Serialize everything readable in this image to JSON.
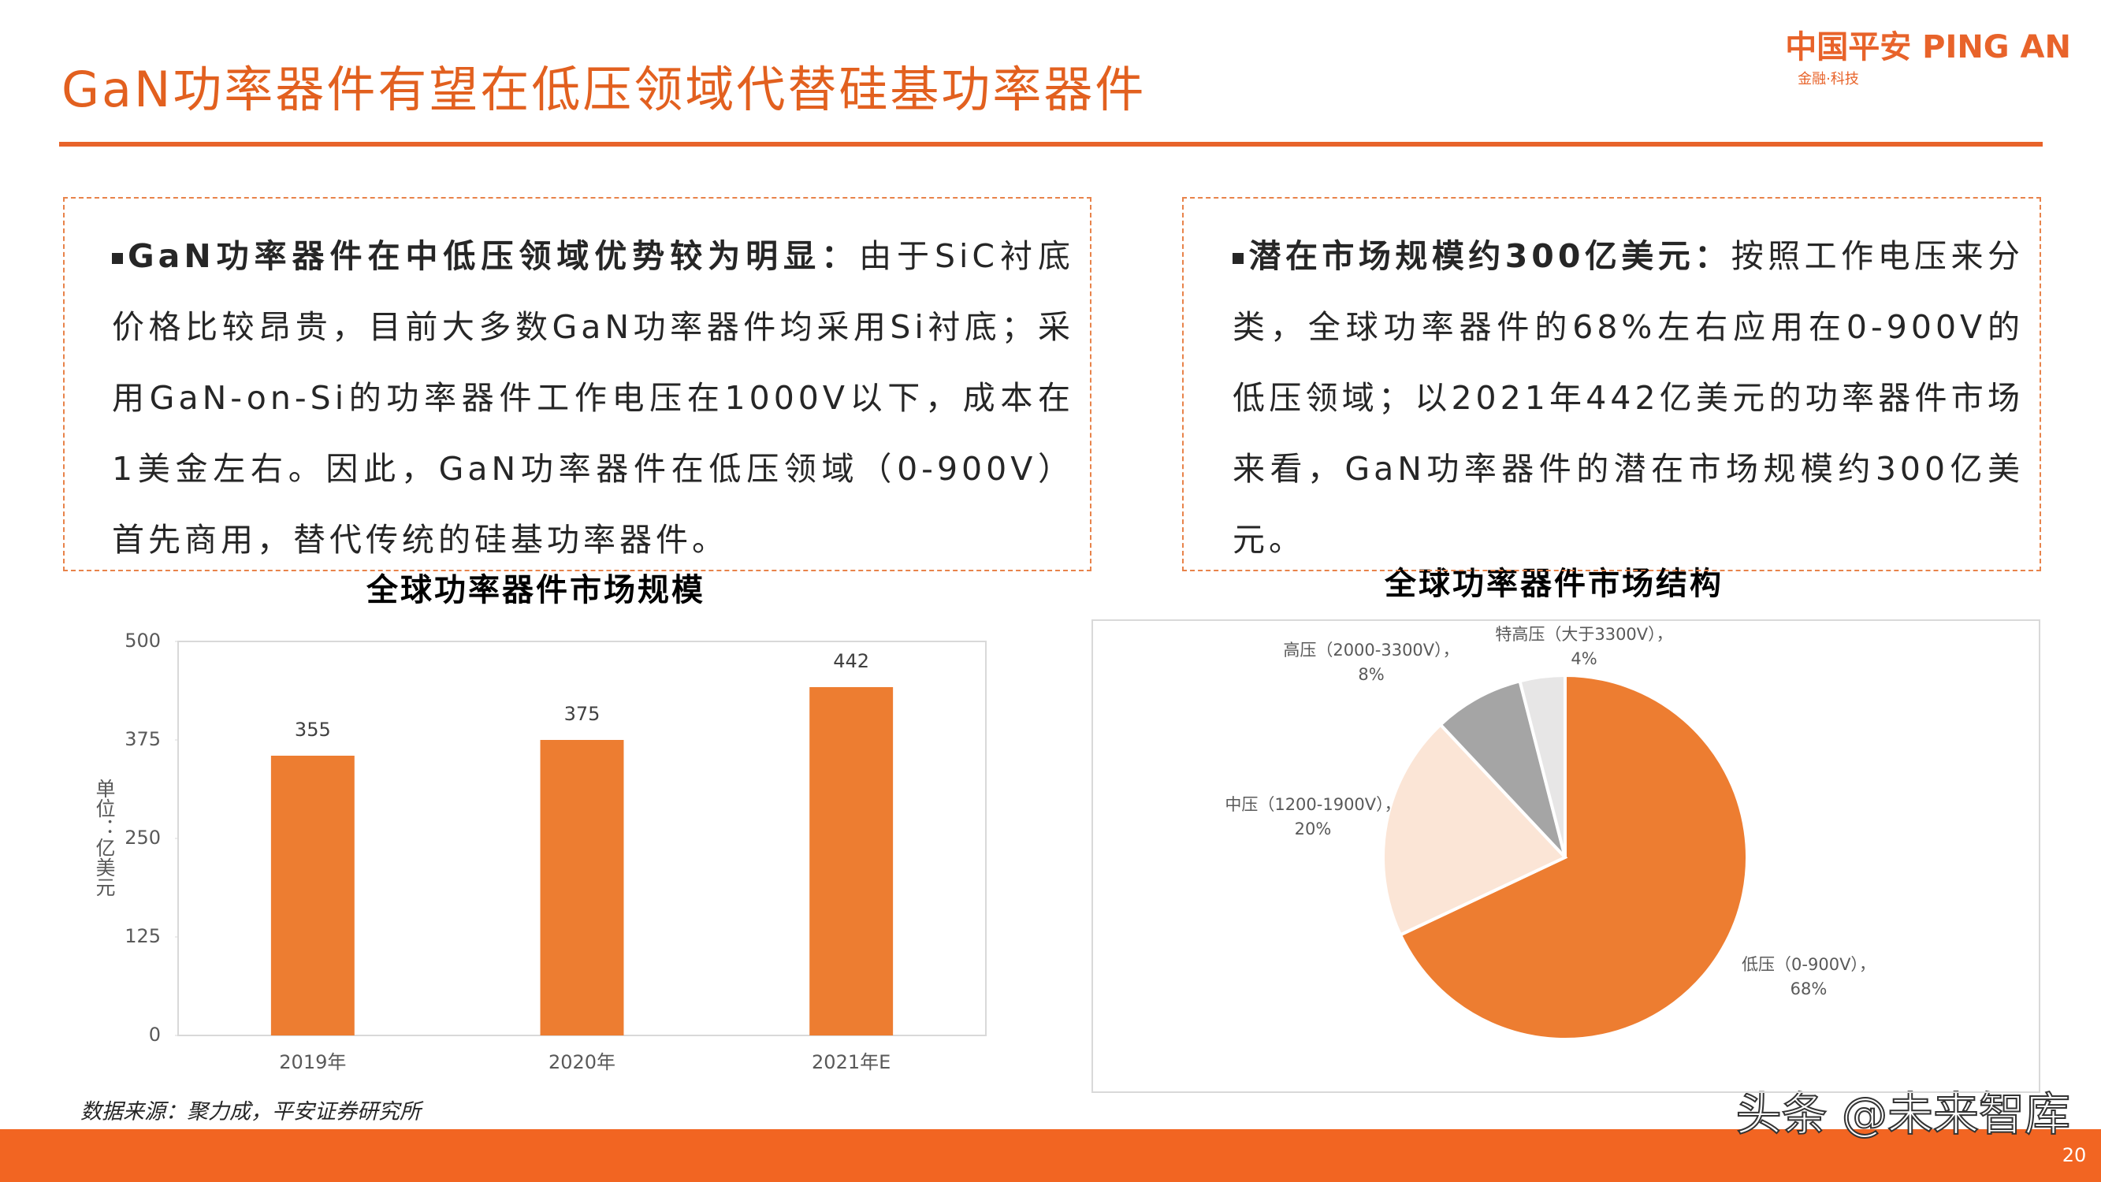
{
  "header": {
    "title": "GaN功率器件有望在低压领域代替硅基功率器件",
    "logo": "中国平安 PING AN",
    "logo_sub": "金融·科技"
  },
  "text_boxes": [
    {
      "heading": "GaN功率器件在中低压领域优势较为明显：",
      "body": "由于SiC衬底价格比较昂贵，目前大多数GaN功率器件均采用Si衬底；采用GaN-on-Si的功率器件工作电压在1000V以下，成本在1美金左右。因此，GaN功率器件在低压领域（0-900V）首先商用，替代传统的硅基功率器件。"
    },
    {
      "heading": "潜在市场规模约300亿美元：",
      "body": "按照工作电压来分类，全球功率器件的68%左右应用在0-900V的低压领域；以2021年442亿美元的功率器件市场来看，GaN功率器件的潜在市场规模约300亿美元。"
    }
  ],
  "chart_data": [
    {
      "type": "bar",
      "title": "全球功率器件市场规模",
      "y_label": "单位：亿美元",
      "categories": [
        "2019年",
        "2020年",
        "2021年E"
      ],
      "values": [
        355,
        375,
        442
      ],
      "color": "#ed7d31",
      "ylim": [
        0,
        500
      ],
      "yticks": [
        0,
        125,
        250,
        375,
        500
      ],
      "data_labels": true
    },
    {
      "type": "pie",
      "title": "全球功率器件市场结构",
      "categories": [
        "低压（0-900V）",
        "中压（1200-1900V）",
        "高压（2000-3300V）",
        "特高压（大于3300V）"
      ],
      "values": [
        68,
        20,
        8,
        4
      ],
      "value_labels": [
        "68%",
        "20%",
        "8%",
        "4%"
      ],
      "label_separator": "，",
      "colors": [
        "#ed7d31",
        "#fbe5d6",
        "#a5a5a5",
        "#e7e6e6"
      ]
    }
  ],
  "source": "数据来源：聚力成，平安证券研究所",
  "watermark": "头条 @未来智库",
  "page_number": 20
}
